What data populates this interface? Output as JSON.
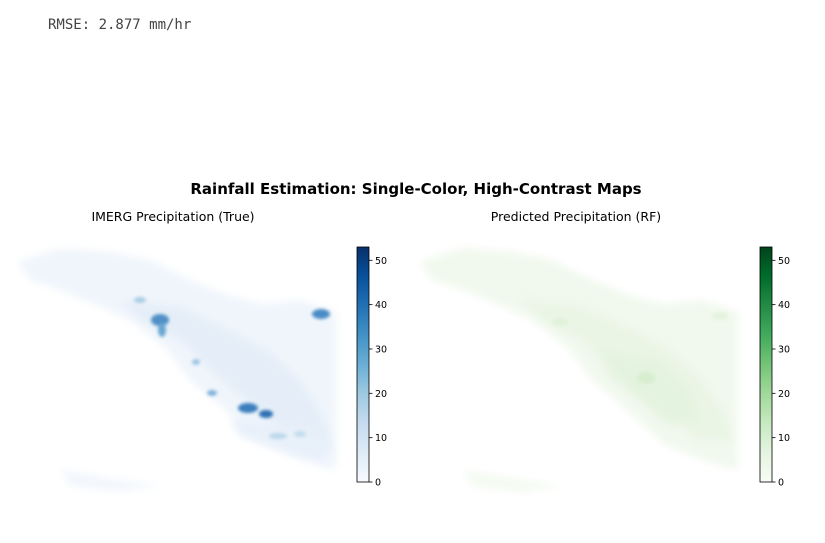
{
  "output": {
    "rmse_text": "RMSE: 2.877 mm/hr"
  },
  "figure": {
    "suptitle": "Rainfall Estimation: Single-Color, High-Contrast Maps"
  },
  "chart_data": [
    {
      "type": "heatmap",
      "title": "IMERG Precipitation (True)",
      "colormap": "Blues",
      "colorbar": {
        "min": 0,
        "max": 53,
        "ticks": [
          0,
          10,
          20,
          30,
          40,
          50
        ],
        "tick_labels": [
          "0",
          "10",
          "20",
          "30",
          "40",
          "50"
        ],
        "color_low": "#f7fbff",
        "color_high": "#08306b"
      },
      "axis_visible": false
    },
    {
      "type": "heatmap",
      "title": "Predicted Precipitation (RF)",
      "colormap": "Greens",
      "colorbar": {
        "min": 0,
        "max": 53,
        "ticks": [
          0,
          10,
          20,
          30,
          40,
          50
        ],
        "tick_labels": [
          "0",
          "10",
          "20",
          "30",
          "40",
          "50"
        ],
        "color_low": "#f7fcf5",
        "color_high": "#00441b"
      },
      "axis_visible": false
    }
  ]
}
